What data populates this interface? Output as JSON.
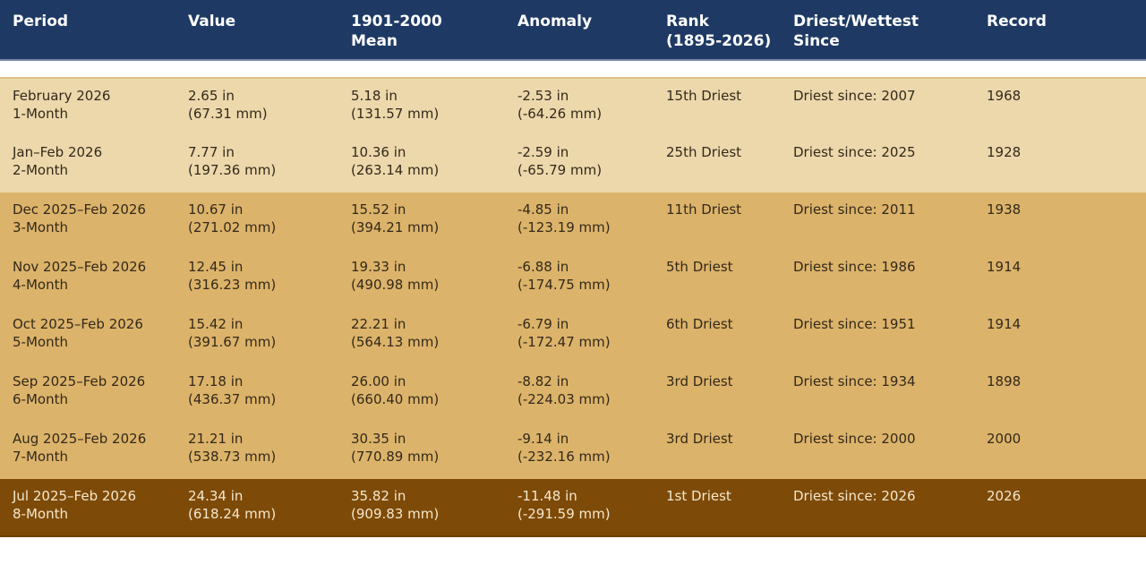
{
  "colors": {
    "header_bg": "#1e3a64",
    "header_text": "#ffffff",
    "header_border": "#7b87a3",
    "row_cream": "#ecd8ab",
    "row_gold": "#dcb36a",
    "row_brown": "#7e4a08",
    "text_dark": "#33291a",
    "text_light": "#f3e8cd",
    "row_top_border": "#e0c185",
    "row_brown_border": "#6b3e03"
  },
  "chart_data": {
    "type": "table",
    "columns": [
      {
        "key": "period",
        "label": "Period"
      },
      {
        "key": "value",
        "label": "Value"
      },
      {
        "key": "mean",
        "label": "1901-2000\nMean"
      },
      {
        "key": "anomaly",
        "label": "Anomaly"
      },
      {
        "key": "rank",
        "label": "Rank\n(1895-2026)"
      },
      {
        "key": "since",
        "label": "Driest/Wettest\nSince"
      },
      {
        "key": "record",
        "label": "Record"
      }
    ],
    "rows": [
      {
        "period": "February 2026\n1-Month",
        "value": "2.65 in\n(67.31 mm)",
        "mean": "5.18 in\n(131.57 mm)",
        "anomaly": "-2.53 in\n(-64.26 mm)",
        "rank": "15th Driest",
        "since": "Driest since: 2007",
        "record": "1968",
        "tone": "cream"
      },
      {
        "period": "Jan–Feb 2026\n2-Month",
        "value": "7.77 in\n(197.36 mm)",
        "mean": "10.36 in\n(263.14 mm)",
        "anomaly": "-2.59 in\n(-65.79 mm)",
        "rank": "25th Driest",
        "since": "Driest since: 2025",
        "record": "1928",
        "tone": "cream"
      },
      {
        "period": "Dec 2025–Feb 2026\n3-Month",
        "value": "10.67 in\n(271.02 mm)",
        "mean": "15.52 in\n(394.21 mm)",
        "anomaly": "-4.85 in\n(-123.19 mm)",
        "rank": "11th Driest",
        "since": "Driest since: 2011",
        "record": "1938",
        "tone": "gold"
      },
      {
        "period": "Nov 2025–Feb 2026\n4-Month",
        "value": "12.45 in\n(316.23 mm)",
        "mean": "19.33 in\n(490.98 mm)",
        "anomaly": "-6.88 in\n(-174.75 mm)",
        "rank": "5th Driest",
        "since": "Driest since: 1986",
        "record": "1914",
        "tone": "gold"
      },
      {
        "period": "Oct 2025–Feb 2026\n5-Month",
        "value": "15.42 in\n(391.67 mm)",
        "mean": "22.21 in\n(564.13 mm)",
        "anomaly": "-6.79 in\n(-172.47 mm)",
        "rank": "6th Driest",
        "since": "Driest since: 1951",
        "record": "1914",
        "tone": "gold"
      },
      {
        "period": "Sep 2025–Feb 2026\n6-Month",
        "value": "17.18 in\n(436.37 mm)",
        "mean": "26.00 in\n(660.40 mm)",
        "anomaly": "-8.82 in\n(-224.03 mm)",
        "rank": "3rd Driest",
        "since": "Driest since: 1934",
        "record": "1898",
        "tone": "gold"
      },
      {
        "period": "Aug 2025–Feb 2026\n7-Month",
        "value": "21.21 in\n(538.73 mm)",
        "mean": "30.35 in\n(770.89 mm)",
        "anomaly": "-9.14 in\n(-232.16 mm)",
        "rank": "3rd Driest",
        "since": "Driest since: 2000",
        "record": "2000",
        "tone": "gold"
      },
      {
        "period": "Jul 2025–Feb 2026\n8-Month",
        "value": "24.34 in\n(618.24 mm)",
        "mean": "35.82 in\n(909.83 mm)",
        "anomaly": "-11.48 in\n(-291.59 mm)",
        "rank": "1st Driest",
        "since": "Driest since: 2026",
        "record": "2026",
        "tone": "brown"
      }
    ]
  }
}
